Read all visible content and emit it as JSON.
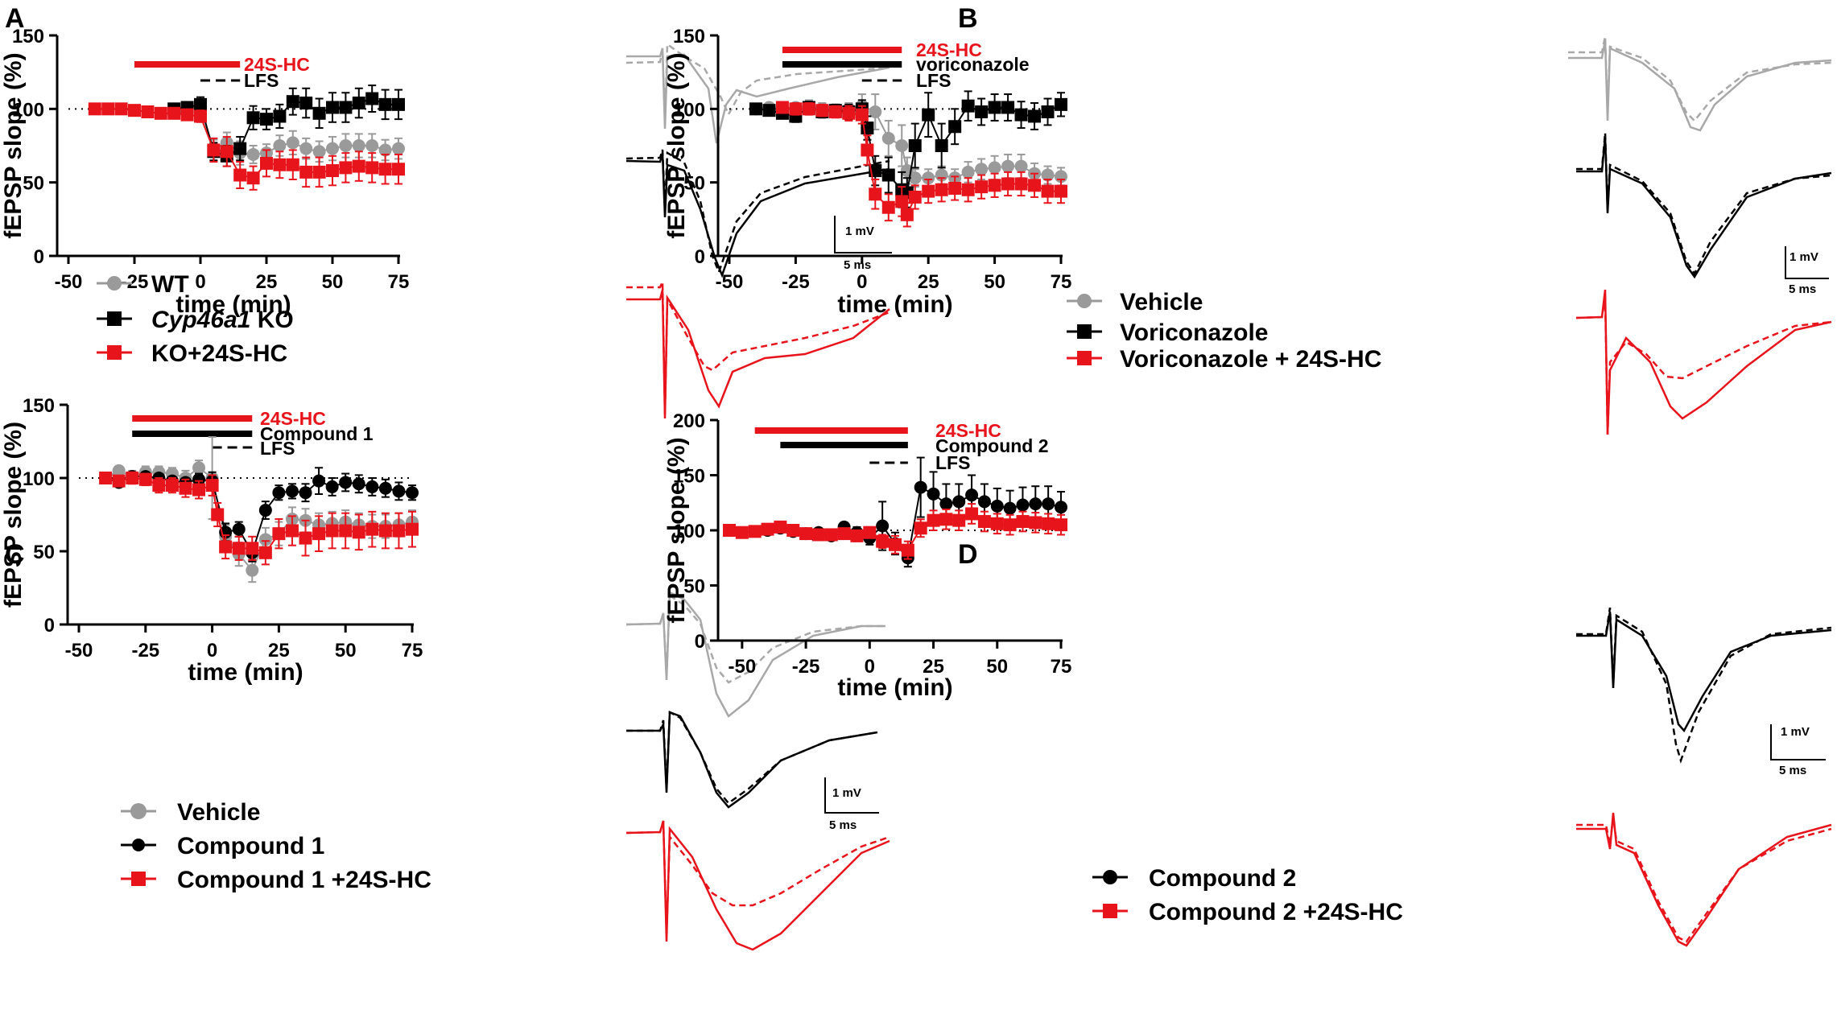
{
  "colors": {
    "gray": "#9a9a9a",
    "black": "#000000",
    "red": "#e8141b"
  },
  "chart_data": [
    {
      "panel": "A",
      "type": "scatter",
      "xlabel": "time (min)",
      "ylabel": "fEPSP slope (%)",
      "xlim": [
        -50,
        75
      ],
      "ylim": [
        0,
        150
      ],
      "xticks": [
        "-50",
        "-25",
        "0",
        "25",
        "50",
        "75"
      ],
      "yticks": [
        "0",
        "50",
        "100",
        "150"
      ],
      "baseline": 100,
      "bars": [
        {
          "label": "24S-HC",
          "color": "#e8141b",
          "style": "thick",
          "start": -25,
          "end": 15
        },
        {
          "label": "LFS",
          "color": "#000000",
          "style": "dashed",
          "start": 0,
          "end": 15
        }
      ],
      "series": [
        {
          "name": "WT",
          "italic": "",
          "marker": "circle",
          "color": "#9a9a9a",
          "x": [
            -10,
            -5,
            0,
            5,
            10,
            15,
            20,
            25,
            30,
            35,
            40,
            45,
            50,
            55,
            60,
            65,
            70,
            75
          ],
          "y": [
            100,
            101,
            100,
            73,
            77,
            70,
            69,
            70,
            75,
            77,
            73,
            71,
            73,
            75,
            75,
            75,
            72,
            73
          ],
          "err": [
            2,
            2,
            3,
            6,
            7,
            8,
            6,
            6,
            7,
            8,
            7,
            7,
            8,
            8,
            8,
            8,
            7,
            7
          ]
        },
        {
          "name": "KO",
          "italic": "Cyp46a1",
          "marker": "square",
          "color": "#000000",
          "x": [
            -10,
            -5,
            0,
            5,
            10,
            15,
            20,
            25,
            30,
            35,
            40,
            45,
            50,
            55,
            60,
            65,
            70,
            75
          ],
          "y": [
            100,
            101,
            103,
            71,
            68,
            73,
            94,
            93,
            95,
            105,
            104,
            97,
            101,
            101,
            104,
            107,
            103,
            103
          ],
          "err": [
            2,
            3,
            5,
            6,
            7,
            8,
            8,
            7,
            8,
            9,
            10,
            10,
            10,
            10,
            10,
            9,
            10,
            10
          ]
        },
        {
          "name": "KO+24S-HC",
          "italic": "",
          "marker": "square",
          "color": "#e8141b",
          "x": [
            -40,
            -35,
            -30,
            -25,
            -20,
            -15,
            -10,
            -5,
            0,
            5,
            10,
            15,
            20,
            25,
            30,
            35,
            40,
            45,
            50,
            55,
            60,
            65,
            70,
            75
          ],
          "y": [
            100,
            100,
            100,
            99,
            98,
            97,
            97,
            96,
            95,
            72,
            71,
            55,
            53,
            63,
            62,
            62,
            57,
            57,
            58,
            60,
            61,
            60,
            59,
            59
          ],
          "err": [
            0,
            1,
            1,
            1,
            2,
            2,
            2,
            3,
            4,
            8,
            10,
            9,
            8,
            9,
            9,
            10,
            10,
            10,
            10,
            10,
            10,
            10,
            10,
            10
          ]
        }
      ],
      "scale": {
        "voltage": "1 mV",
        "time": "5 ms"
      }
    },
    {
      "panel": "B",
      "type": "scatter",
      "xlabel": "time (min)",
      "ylabel": "fEPSP slope (%)",
      "xlim": [
        -50,
        75
      ],
      "ylim": [
        0,
        150
      ],
      "xticks": [
        "-50",
        "-25",
        "0",
        "25",
        "50",
        "75"
      ],
      "yticks": [
        "0",
        "50",
        "100",
        "150"
      ],
      "baseline": 100,
      "bars": [
        {
          "label": "24S-HC",
          "color": "#e8141b",
          "style": "thick",
          "start": -30,
          "end": 15
        },
        {
          "label": "voriconazole",
          "color": "#000000",
          "style": "thick",
          "start": -30,
          "end": 15
        },
        {
          "label": "LFS",
          "color": "#000000",
          "style": "dashed",
          "start": 0,
          "end": 15
        }
      ],
      "series": [
        {
          "name": "Vehicle",
          "italic": "",
          "marker": "circle",
          "color": "#9a9a9a",
          "x": [
            -40,
            -35,
            -30,
            -25,
            -20,
            -15,
            -10,
            -5,
            0,
            5,
            10,
            15,
            17,
            20,
            25,
            30,
            35,
            40,
            45,
            50,
            55,
            60,
            65,
            70,
            75
          ],
          "y": [
            100,
            101,
            98,
            101,
            102,
            100,
            99,
            100,
            102,
            98,
            80,
            75,
            58,
            53,
            53,
            55,
            53,
            57,
            59,
            60,
            61,
            61,
            56,
            55,
            54
          ],
          "err": [
            1,
            2,
            3,
            3,
            4,
            4,
            4,
            4,
            8,
            12,
            12,
            14,
            9,
            6,
            6,
            6,
            6,
            7,
            7,
            8,
            8,
            8,
            7,
            6,
            6
          ]
        },
        {
          "name": "Voriconazole",
          "italic": "",
          "marker": "square",
          "color": "#000000",
          "x": [
            -40,
            -35,
            -30,
            -25,
            -20,
            -15,
            -10,
            -5,
            0,
            2,
            5,
            10,
            15,
            17,
            20,
            25,
            30,
            35,
            40,
            45,
            50,
            55,
            60,
            65,
            70,
            75
          ],
          "y": [
            100,
            99,
            97,
            95,
            101,
            98,
            99,
            98,
            100,
            87,
            58,
            55,
            45,
            43,
            75,
            96,
            75,
            88,
            102,
            98,
            101,
            101,
            96,
            95,
            98,
            103
          ],
          "err": [
            1,
            2,
            3,
            4,
            4,
            4,
            4,
            5,
            6,
            8,
            10,
            12,
            12,
            10,
            15,
            15,
            15,
            12,
            10,
            9,
            9,
            9,
            9,
            9,
            9,
            8
          ]
        },
        {
          "name": "Voriconazole + 24S-HC",
          "italic": "",
          "marker": "square",
          "color": "#e8141b",
          "x": [
            -30,
            -25,
            -20,
            -15,
            -10,
            -5,
            0,
            2,
            5,
            10,
            15,
            17,
            20,
            25,
            30,
            35,
            40,
            45,
            50,
            55,
            60,
            65,
            70,
            75
          ],
          "y": [
            101,
            100,
            100,
            99,
            98,
            97,
            96,
            72,
            42,
            33,
            37,
            28,
            40,
            44,
            45,
            46,
            45,
            47,
            48,
            49,
            49,
            48,
            44,
            44
          ],
          "err": [
            3,
            4,
            4,
            4,
            4,
            5,
            6,
            10,
            10,
            9,
            10,
            8,
            8,
            8,
            8,
            8,
            8,
            8,
            8,
            8,
            8,
            8,
            8,
            8
          ]
        }
      ],
      "scale": {
        "voltage": "1 mV",
        "time": "5 ms"
      }
    },
    {
      "panel": "C",
      "type": "scatter",
      "xlabel": "time (min)",
      "ylabel": "fEPSP slope (%)",
      "xlim": [
        -50,
        75
      ],
      "ylim": [
        0,
        150
      ],
      "xticks": [
        "-50",
        "-25",
        "0",
        "25",
        "50",
        "75"
      ],
      "yticks": [
        "0",
        "50",
        "100",
        "150"
      ],
      "baseline": 100,
      "bars": [
        {
          "label": "24S-HC",
          "color": "#e8141b",
          "style": "thick",
          "start": -30,
          "end": 15
        },
        {
          "label": "Compound 1",
          "color": "#000000",
          "style": "thick",
          "start": -30,
          "end": 15
        },
        {
          "label": "LFS",
          "color": "#000000",
          "style": "dashed",
          "start": 0,
          "end": 15
        }
      ],
      "series": [
        {
          "name": "Vehicle",
          "italic": "",
          "marker": "circle",
          "color": "#9a9a9a",
          "x": [
            -40,
            -35,
            -30,
            -25,
            -20,
            -15,
            -10,
            -5,
            0,
            5,
            10,
            15,
            20,
            25,
            30,
            35,
            40,
            45,
            50,
            55,
            60,
            65,
            70,
            75
          ],
          "y": [
            100,
            105,
            101,
            104,
            104,
            103,
            100,
            107,
            100,
            60,
            48,
            37,
            58,
            62,
            72,
            71,
            68,
            69,
            70,
            68,
            67,
            67,
            68,
            70
          ],
          "err": [
            1,
            3,
            4,
            4,
            4,
            4,
            5,
            5,
            28,
            8,
            8,
            8,
            8,
            8,
            8,
            8,
            8,
            8,
            8,
            8,
            8,
            8,
            8,
            8
          ]
        },
        {
          "name": "Compound 1",
          "italic": "",
          "marker": "circle",
          "color": "#000000",
          "x": [
            -40,
            -35,
            -30,
            -25,
            -20,
            -15,
            -10,
            -5,
            0,
            5,
            10,
            15,
            20,
            25,
            30,
            35,
            40,
            45,
            50,
            55,
            60,
            65,
            70,
            75
          ],
          "y": [
            100,
            97,
            101,
            101,
            100,
            98,
            97,
            99,
            98,
            63,
            65,
            49,
            78,
            90,
            91,
            90,
            98,
            94,
            97,
            96,
            94,
            93,
            91,
            90
          ],
          "err": [
            1,
            2,
            3,
            3,
            3,
            3,
            3,
            4,
            6,
            6,
            5,
            6,
            6,
            5,
            5,
            6,
            9,
            6,
            6,
            6,
            6,
            6,
            6,
            5
          ]
        },
        {
          "name": "Compound 1 +24S-HC",
          "italic": "",
          "marker": "square",
          "color": "#e8141b",
          "x": [
            -40,
            -35,
            -30,
            -25,
            -20,
            -15,
            -10,
            -5,
            0,
            2,
            5,
            10,
            15,
            20,
            25,
            30,
            35,
            40,
            45,
            50,
            55,
            60,
            65,
            70,
            75
          ],
          "y": [
            100,
            98,
            100,
            99,
            95,
            95,
            93,
            92,
            95,
            75,
            53,
            52,
            52,
            49,
            62,
            64,
            59,
            62,
            64,
            64,
            63,
            65,
            64,
            64,
            65
          ],
          "err": [
            1,
            3,
            4,
            4,
            5,
            5,
            6,
            6,
            7,
            8,
            8,
            8,
            8,
            8,
            10,
            10,
            12,
            12,
            12,
            12,
            12,
            12,
            12,
            12,
            12
          ]
        }
      ],
      "scale": {
        "voltage": "1 mV",
        "time": "5 ms"
      }
    },
    {
      "panel": "D",
      "type": "scatter",
      "xlabel": "time (min)",
      "ylabel": "fEPSP slope (%)",
      "xlim": [
        -55,
        75
      ],
      "ylim": [
        0,
        200
      ],
      "xticks": [
        "-50",
        "-25",
        "0",
        "25",
        "50",
        "75"
      ],
      "yticks": [
        "0",
        "50",
        "100",
        "150",
        "200"
      ],
      "baseline": 100,
      "bars": [
        {
          "label": "24S-HC",
          "color": "#e8141b",
          "style": "thick",
          "start": -45,
          "end": 15
        },
        {
          "label": "Compound 2",
          "color": "#000000",
          "style": "thick",
          "start": -35,
          "end": 15
        },
        {
          "label": "LFS",
          "color": "#000000",
          "style": "dashed",
          "start": 0,
          "end": 15
        }
      ],
      "series": [
        {
          "name": "Compound 2",
          "italic": "",
          "marker": "circle",
          "color": "#000000",
          "x": [
            -40,
            -35,
            -30,
            -25,
            -20,
            -15,
            -10,
            -5,
            0,
            5,
            10,
            15,
            20,
            25,
            30,
            35,
            40,
            45,
            50,
            55,
            60,
            65,
            70,
            75
          ],
          "y": [
            100,
            102,
            99,
            97,
            98,
            95,
            103,
            98,
            93,
            104,
            88,
            75,
            139,
            133,
            124,
            126,
            132,
            126,
            122,
            120,
            123,
            124,
            124,
            121
          ],
          "err": [
            2,
            3,
            3,
            3,
            3,
            4,
            4,
            5,
            6,
            22,
            10,
            8,
            27,
            20,
            18,
            16,
            18,
            16,
            16,
            16,
            16,
            16,
            16,
            14
          ]
        },
        {
          "name": "Compound 2 +24S-HC",
          "italic": "",
          "marker": "square",
          "color": "#e8141b",
          "x": [
            -55,
            -50,
            -45,
            -40,
            -35,
            -30,
            -25,
            -20,
            -15,
            -10,
            -5,
            0,
            5,
            10,
            15,
            20,
            25,
            30,
            35,
            40,
            45,
            50,
            55,
            60,
            65,
            70,
            75
          ],
          "y": [
            100,
            98,
            99,
            101,
            103,
            100,
            97,
            96,
            96,
            97,
            95,
            98,
            90,
            87,
            82,
            102,
            109,
            110,
            109,
            115,
            108,
            106,
            105,
            108,
            107,
            106,
            105
          ],
          "err": [
            1,
            2,
            2,
            3,
            3,
            3,
            3,
            4,
            4,
            4,
            5,
            5,
            6,
            8,
            8,
            8,
            9,
            9,
            9,
            9,
            9,
            9,
            9,
            9,
            9,
            9,
            9
          ]
        }
      ],
      "scale": {
        "voltage": "1 mV",
        "time": "5 ms"
      }
    }
  ]
}
